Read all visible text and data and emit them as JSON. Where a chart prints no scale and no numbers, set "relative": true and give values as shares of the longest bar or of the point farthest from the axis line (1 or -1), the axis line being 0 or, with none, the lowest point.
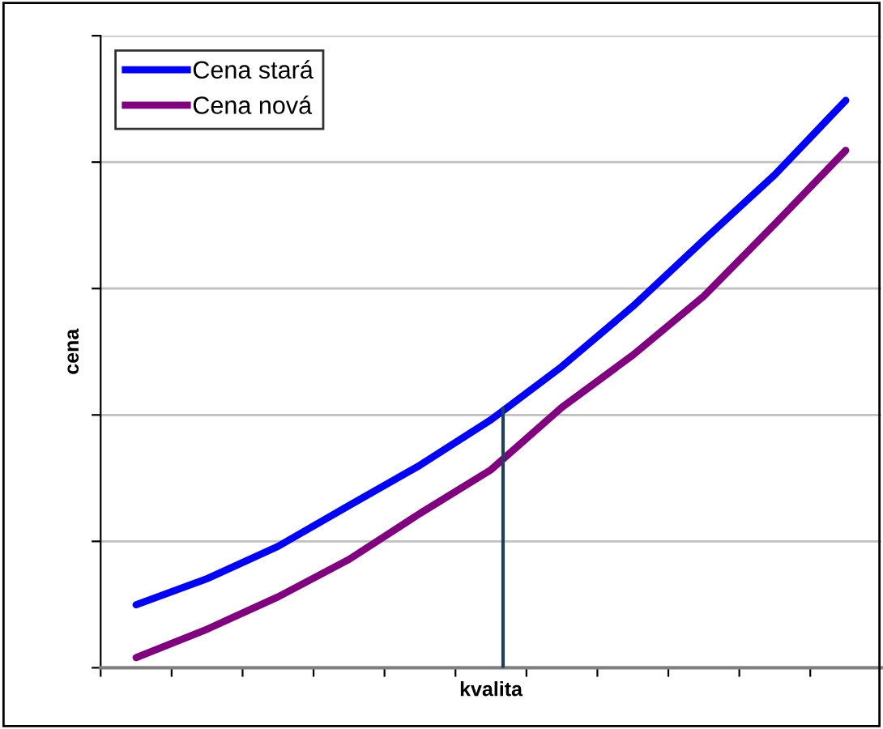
{
  "chart_data": {
    "type": "line",
    "relative": true,
    "xlabel": "kvalita",
    "ylabel": "cena",
    "categories": [
      null,
      null,
      null,
      null,
      null,
      null,
      null,
      null,
      null,
      null,
      null
    ],
    "series": [
      {
        "name": "Cena stará",
        "color": "#0000ff",
        "values": [
          0.111,
          0.157,
          0.214,
          0.286,
          0.357,
          0.437,
          0.531,
          0.637,
          0.754,
          0.869,
          1
        ]
      },
      {
        "name": "Cena nová",
        "color": "#800080",
        "values": [
          0.018,
          0.068,
          0.125,
          0.191,
          0.272,
          0.349,
          0.459,
          0.551,
          0.655,
          0.782,
          0.912
        ]
      }
    ],
    "grid": "y",
    "legend": "top left",
    "tick_labels": false,
    "marker": "none",
    "line_style": "solid"
  }
}
